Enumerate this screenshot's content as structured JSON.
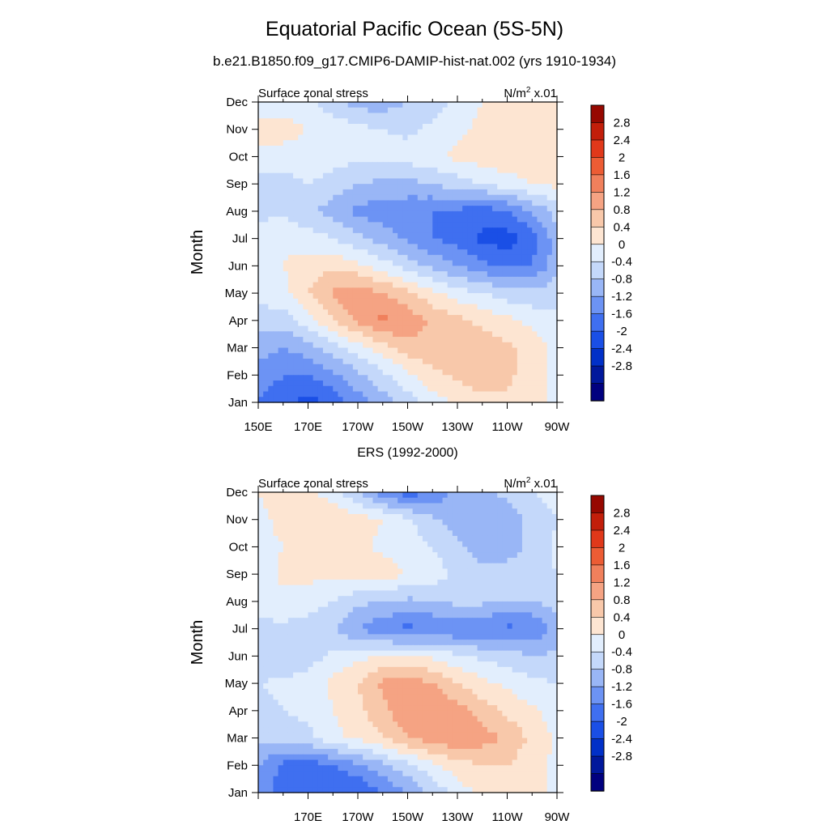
{
  "title": "Equatorial Pacific Ocean (5S-5N)",
  "subtitle": "b.e21.B1850.f09_g17.CMIP6-DAMIP-hist-nat.002 (yrs 1910-1934)",
  "colors": {
    "levels": [
      "#00007f",
      "#00189c",
      "#0030c8",
      "#1a4fe6",
      "#3f6ff0",
      "#6c93f4",
      "#99b6f6",
      "#c4d8fa",
      "#e2eefd",
      "#fde5d2",
      "#f8c8aa",
      "#f5a383",
      "#f0805c",
      "#ec5c34",
      "#e0381a",
      "#c21e0a",
      "#960800"
    ]
  },
  "chart_data": [
    {
      "type": "heatmap",
      "title": "b.e21.B1850.f09_g17.CMIP6-DAMIP-hist-nat.002 (yrs 1910-1934)",
      "left_label": "Surface zonal stress",
      "right_label_base": "N/m",
      "right_label_sup": "2",
      "right_label_tail": " x.01",
      "ylabel": "Month",
      "x_ticks": [
        "150E",
        "170E",
        "170W",
        "150W",
        "130W",
        "110W",
        "90W"
      ],
      "y_ticks": [
        "Jan",
        "Feb",
        "Mar",
        "Apr",
        "May",
        "Jun",
        "Jul",
        "Aug",
        "Sep",
        "Oct",
        "Nov",
        "Dec"
      ],
      "colorbar_labels": [
        "2.8",
        "2.4",
        "2",
        "1.6",
        "1.2",
        "0.8",
        "0.4",
        "0",
        "-0.4",
        "-0.8",
        "-1.2",
        "-1.6",
        "-2",
        "-2.4",
        "-2.8"
      ],
      "x_lon": [
        150,
        160,
        170,
        180,
        190,
        200,
        210,
        220,
        230,
        240,
        250,
        260,
        270
      ],
      "rows": [
        [
          -1.2,
          -1.4,
          -1.8,
          -1.5,
          -1.0,
          -0.6,
          -0.2,
          0.2,
          0.5,
          0.7,
          0.7,
          0.5,
          0.3
        ],
        [
          -1.0,
          -1.2,
          -1.2,
          -0.9,
          -0.5,
          -0.1,
          0.3,
          0.7,
          0.9,
          1.0,
          0.9,
          0.6,
          0.3
        ],
        [
          -0.6,
          -0.8,
          -0.6,
          -0.2,
          0.2,
          0.6,
          1.0,
          1.1,
          1.1,
          1.0,
          0.9,
          0.6,
          0.3
        ],
        [
          -0.2,
          -0.2,
          0.2,
          0.8,
          1.3,
          1.7,
          1.5,
          1.1,
          0.9,
          0.7,
          0.5,
          0.3,
          0.1
        ],
        [
          0.1,
          0.3,
          0.8,
          1.3,
          1.5,
          1.2,
          0.9,
          0.5,
          0.2,
          0.0,
          -0.2,
          -0.3,
          -0.1
        ],
        [
          0.2,
          0.4,
          0.6,
          0.7,
          0.5,
          0.2,
          -0.2,
          -0.5,
          -0.8,
          -1.1,
          -1.3,
          -1.2,
          -0.6
        ],
        [
          0.2,
          0.3,
          0.2,
          0.0,
          -0.3,
          -0.6,
          -0.9,
          -1.2,
          -1.4,
          -1.7,
          -1.8,
          -1.4,
          -0.6
        ],
        [
          -0.1,
          -0.1,
          -0.3,
          -0.6,
          -0.9,
          -1.0,
          -1.1,
          -1.2,
          -1.3,
          -1.4,
          -1.2,
          -0.8,
          -0.2
        ],
        [
          -0.2,
          -0.2,
          0.0,
          -0.2,
          -0.4,
          -0.5,
          -0.5,
          -0.4,
          -0.2,
          0.0,
          0.2,
          0.4,
          0.5
        ],
        [
          0.3,
          0.3,
          0.3,
          0.2,
          0.1,
          0.1,
          0.2,
          0.3,
          0.5,
          0.6,
          0.7,
          0.7,
          0.7
        ],
        [
          0.6,
          0.5,
          0.4,
          0.3,
          0.1,
          0.0,
          -0.1,
          0.1,
          0.3,
          0.5,
          0.6,
          0.7,
          0.8
        ],
        [
          0.2,
          0.3,
          0.1,
          -0.3,
          -0.6,
          -0.6,
          -0.4,
          -0.2,
          0.1,
          0.4,
          0.5,
          0.5,
          0.6
        ]
      ]
    },
    {
      "type": "heatmap",
      "title": "ERS (1992-2000)",
      "left_label": "Surface zonal stress",
      "right_label_base": "N/m",
      "right_label_sup": "2",
      "right_label_tail": " x.01",
      "ylabel": "Month",
      "x_ticks": [
        "",
        "170E",
        "170W",
        "150W",
        "130W",
        "110W",
        "90W"
      ],
      "y_ticks": [
        "Jan",
        "Feb",
        "Mar",
        "Apr",
        "May",
        "Jun",
        "Jul",
        "Aug",
        "Sep",
        "Oct",
        "Nov",
        "Dec"
      ],
      "colorbar_labels": [
        "2.8",
        "2.4",
        "2",
        "1.6",
        "1.2",
        "0.8",
        "0.4",
        "0",
        "-0.4",
        "-0.8",
        "-1.2",
        "-1.6",
        "-2",
        "-2.4",
        "-2.8"
      ],
      "x_lon": [
        150,
        160,
        170,
        180,
        190,
        200,
        210,
        220,
        230,
        240,
        250,
        260,
        270
      ],
      "rows": [
        [
          -1.0,
          -1.4,
          -1.5,
          -1.6,
          -1.6,
          -1.2,
          -0.8,
          -0.3,
          0.2,
          0.5,
          0.6,
          0.5,
          0.3
        ],
        [
          -0.8,
          -1.3,
          -1.4,
          -1.2,
          -0.9,
          -0.5,
          -0.1,
          0.3,
          0.6,
          0.8,
          0.8,
          0.6,
          0.3
        ],
        [
          -0.2,
          -0.3,
          -0.1,
          0.3,
          0.5,
          0.8,
          1.2,
          1.4,
          1.6,
          1.4,
          1.1,
          0.7,
          0.3
        ],
        [
          -0.1,
          0.0,
          0.1,
          0.4,
          0.7,
          1.1,
          1.5,
          1.6,
          1.4,
          1.0,
          0.7,
          0.5,
          0.2
        ],
        [
          0.0,
          0.1,
          0.2,
          0.5,
          0.8,
          1.3,
          1.5,
          1.2,
          0.8,
          0.5,
          0.3,
          0.1,
          0.0
        ],
        [
          -0.3,
          -0.4,
          -0.2,
          0.1,
          0.3,
          0.4,
          0.4,
          0.3,
          0.1,
          -0.1,
          -0.2,
          -0.4,
          -0.3
        ],
        [
          -0.1,
          -0.1,
          -0.2,
          -0.4,
          -0.8,
          -1.1,
          -1.3,
          -1.2,
          -1.2,
          -1.2,
          -1.3,
          -1.2,
          -0.6
        ],
        [
          0.1,
          0.3,
          0.2,
          0.0,
          -0.3,
          -0.4,
          -0.5,
          -0.4,
          -0.3,
          -0.3,
          -0.4,
          -0.4,
          -0.2
        ],
        [
          0.1,
          0.5,
          0.5,
          0.5,
          0.6,
          0.6,
          0.4,
          0.2,
          -0.1,
          -0.3,
          -0.2,
          -0.1,
          0.0
        ],
        [
          0.3,
          0.4,
          0.5,
          0.6,
          0.5,
          0.3,
          0.2,
          0.0,
          -0.3,
          -0.6,
          -0.6,
          -0.3,
          0.1
        ],
        [
          0.3,
          0.5,
          0.7,
          0.8,
          0.6,
          0.4,
          0.1,
          -0.3,
          -0.6,
          -0.7,
          -0.6,
          -0.3,
          0.0
        ],
        [
          0.4,
          0.6,
          0.5,
          0.2,
          -0.4,
          -1.0,
          -1.5,
          -1.1,
          -0.7,
          -0.5,
          -0.3,
          0.0,
          0.2
        ]
      ]
    }
  ]
}
